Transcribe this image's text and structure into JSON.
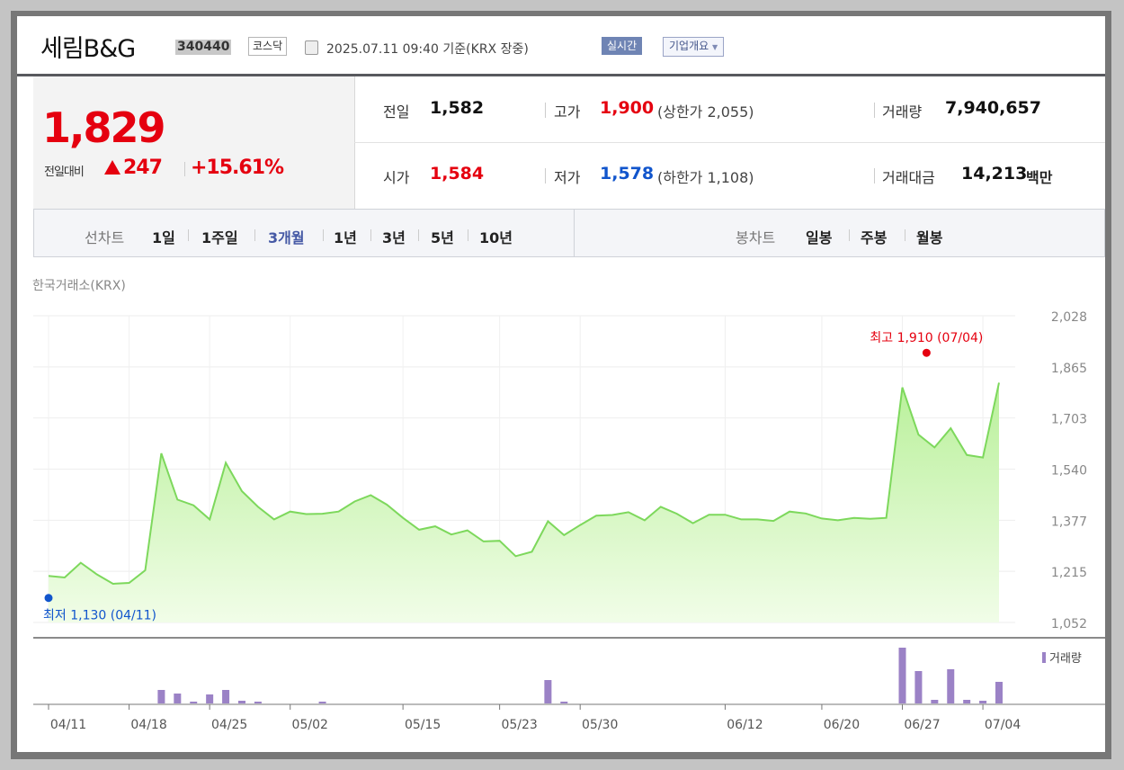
{
  "stock": {
    "name": "세림B&G",
    "code": "340440",
    "market": "코스닥",
    "datetime": "2025.07.11 09:40",
    "basis": "기준(KRX 장중)",
    "realtime_label": "실시간",
    "company_label": "기업개요",
    "price": "1,829",
    "compare_label": "전일대비",
    "change": "247",
    "change_pct": "+15.61%"
  },
  "quote": {
    "prev_label": "전일",
    "prev": "1,582",
    "high_label": "고가",
    "high": "1,900",
    "upper_limit": "(상한가 2,055)",
    "volume_label": "거래량",
    "volume": "7,940,657",
    "open_label": "시가",
    "open": "1,584",
    "low_label": "저가",
    "low": "1,578",
    "lower_limit": "(하한가 1,108)",
    "amount_label": "거래대금",
    "amount": "14,213",
    "amount_unit": "백만"
  },
  "tabs": {
    "line_label": "선차트",
    "line": [
      "1일",
      "1주일",
      "3개월",
      "1년",
      "3년",
      "5년",
      "10년"
    ],
    "active": "3개월",
    "candle_label": "봉차트",
    "candle": [
      "일봉",
      "주봉",
      "월봉"
    ]
  },
  "exchange_label": "한국거래소(KRX)",
  "colors": {
    "up": "#e5000f",
    "down": "#1155cc",
    "line": "#7dd85c",
    "area_top": "#b9f09a",
    "area_bottom": "#f1fde8",
    "volume_bar": "#9b82c6"
  },
  "chart_data": {
    "type": "area",
    "series": [
      {
        "name": "",
        "values": [
          1200,
          1195,
          1242,
          1205,
          1175,
          1178,
          1218,
          1590,
          1443,
          1425,
          1380,
          1560,
          1470,
          1420,
          1380,
          1405,
          1397,
          1398,
          1405,
          1437,
          1457,
          1427,
          1385,
          1347,
          1358,
          1332,
          1345,
          1310,
          1312,
          1263,
          1277,
          1374,
          1330,
          1362,
          1392,
          1394,
          1403,
          1377,
          1420,
          1398,
          1368,
          1395,
          1395,
          1380,
          1380,
          1375,
          1405,
          1399,
          1383,
          1377,
          1385,
          1382,
          1385,
          1800,
          1650,
          1609,
          1670,
          1585,
          1577,
          1815
        ]
      },
      {
        "name": "거래량",
        "values": [
          0,
          0,
          0,
          0,
          0,
          0,
          0,
          15,
          11,
          2,
          10,
          15,
          3,
          2,
          0,
          0,
          0,
          2,
          0,
          0,
          0,
          0,
          0,
          0,
          0,
          0,
          0,
          0,
          0,
          0,
          0,
          26,
          2,
          0,
          0,
          0,
          0,
          0,
          0,
          0,
          0,
          0,
          0,
          0,
          0,
          0,
          0,
          0,
          0,
          0,
          0,
          0,
          0,
          62,
          36,
          4,
          38,
          4,
          3,
          24
        ]
      }
    ],
    "ylim": [
      1052,
      2028
    ],
    "yticks": [
      "2,028",
      "1,865",
      "1,703",
      "1,540",
      "1,377",
      "1,215",
      "1,052"
    ],
    "xticks": [
      "04/11",
      "04/18",
      "04/25",
      "05/02",
      "05/15",
      "05/23",
      "05/30",
      "06/12",
      "06/20",
      "06/27",
      "07/04"
    ],
    "high_label": "최고 1,910 (07/04)",
    "low_label": "최저 1,130 (04/11)",
    "volume_legend": "거래량",
    "grid": true
  }
}
